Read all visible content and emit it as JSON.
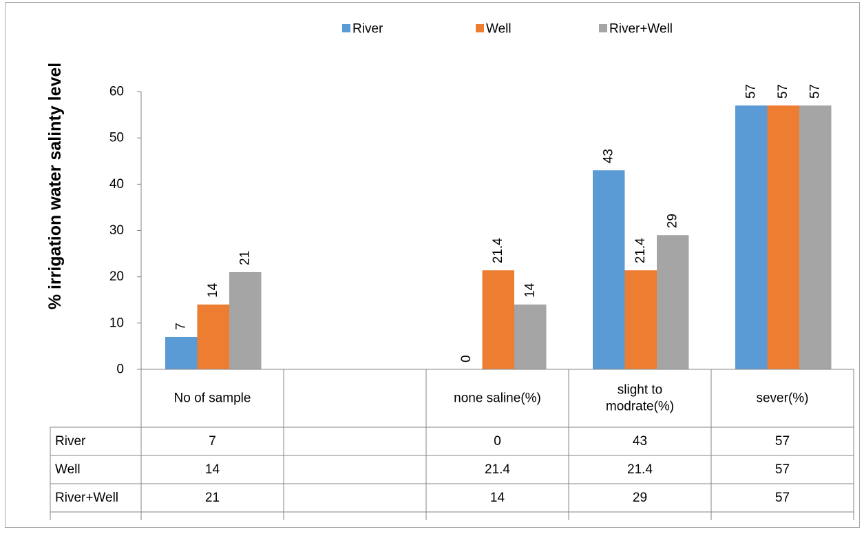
{
  "chart_data": {
    "type": "bar",
    "title": "",
    "xlabel": "",
    "ylabel": "% irrigation water salinty level",
    "ylim": [
      0,
      60
    ],
    "yticks": [
      0,
      10,
      20,
      30,
      40,
      50,
      60
    ],
    "grid": false,
    "legend_position": "top",
    "categories": [
      "No of sample",
      "",
      "none saline(%)",
      "slight to modrate(%)",
      "sever(%)"
    ],
    "series": [
      {
        "name": "River",
        "color": "#5B9BD5",
        "values": [
          7,
          null,
          0,
          43,
          57
        ],
        "labels": [
          "7",
          "",
          "0",
          "43",
          "57"
        ]
      },
      {
        "name": "Well",
        "color": "#ED7D31",
        "values": [
          14,
          null,
          21.4,
          21.4,
          57
        ],
        "labels": [
          "14",
          "",
          "21.4",
          "21.4",
          "57"
        ]
      },
      {
        "name": "River+Well",
        "color": "#A5A5A5",
        "values": [
          21,
          null,
          14,
          29,
          57
        ],
        "labels": [
          "21",
          "",
          "14",
          "29",
          "57"
        ]
      }
    ],
    "data_table": {
      "row_labels": [
        "River",
        "Well",
        "River+Well"
      ],
      "rows": [
        [
          "7",
          "",
          "0",
          "43",
          "57"
        ],
        [
          "14",
          "",
          "21.4",
          "21.4",
          "57"
        ],
        [
          "21",
          "",
          "14",
          "29",
          "57"
        ]
      ]
    }
  }
}
